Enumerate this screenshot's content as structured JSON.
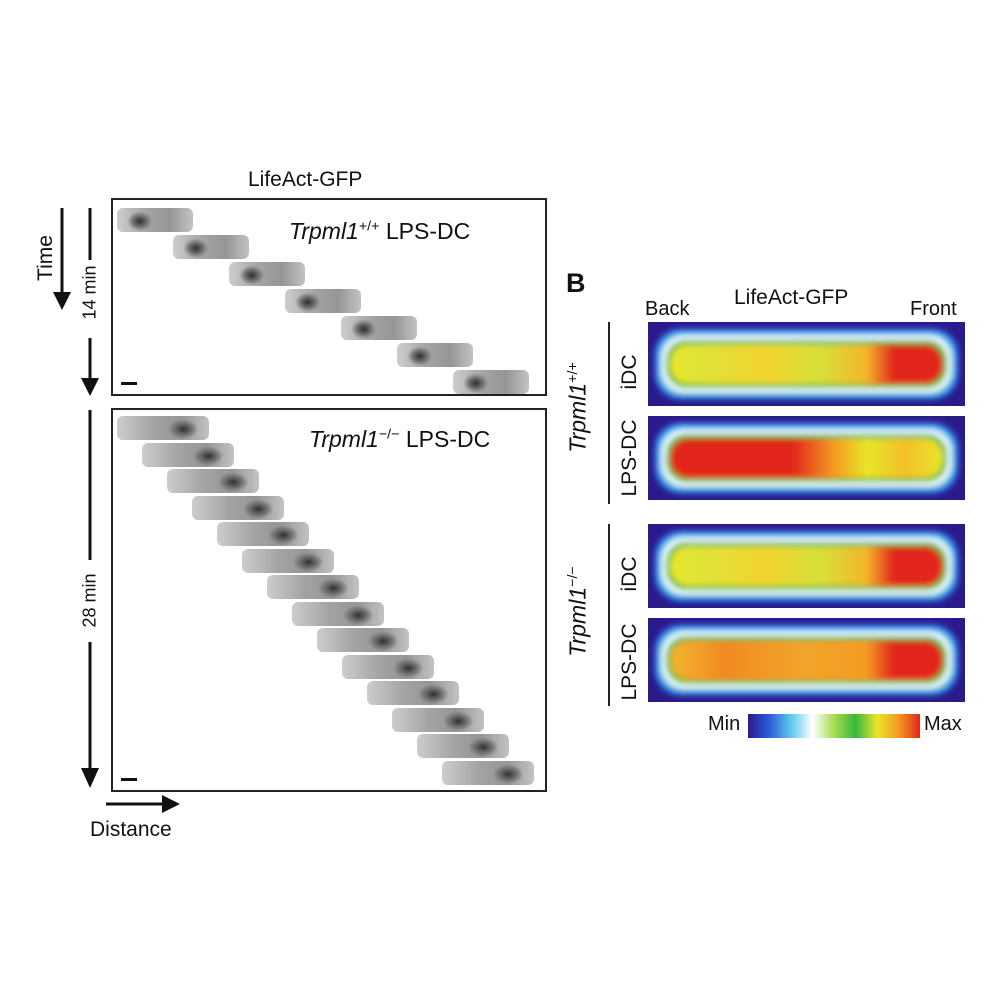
{
  "panelA": {
    "title": "LifeAct-GFP",
    "time_label": "Time",
    "distance_label": "Distance",
    "top": {
      "genotype": "Trpml1",
      "sup": "+/+",
      "condition": "LPS-DC",
      "duration": "14 min",
      "frames": 7
    },
    "bottom": {
      "genotype": "Trpml1",
      "sup": "−/−",
      "condition": "LPS-DC",
      "duration": "28 min",
      "frames": 14
    }
  },
  "panelB": {
    "letter": "B",
    "title": "LifeAct-GFP",
    "back_label": "Back",
    "front_label": "Front",
    "groups": [
      {
        "genotype": "Trpml1",
        "sup": "+/+",
        "rows": [
          {
            "label": "iDC",
            "profile": "front"
          },
          {
            "label": "LPS-DC",
            "profile": "back"
          }
        ]
      },
      {
        "genotype": "Trpml1",
        "sup": "−/−",
        "rows": [
          {
            "label": "iDC",
            "profile": "front"
          },
          {
            "label": "LPS-DC",
            "profile": "spread"
          }
        ]
      }
    ],
    "colorbar": {
      "min_label": "Min",
      "max_label": "Max",
      "colors": [
        "#2a1a8a",
        "#2a5fd8",
        "#5ec8ee",
        "#ffffff",
        "#a8dc50",
        "#36b83a",
        "#e9e52a",
        "#f59a22",
        "#e2261c"
      ]
    }
  }
}
